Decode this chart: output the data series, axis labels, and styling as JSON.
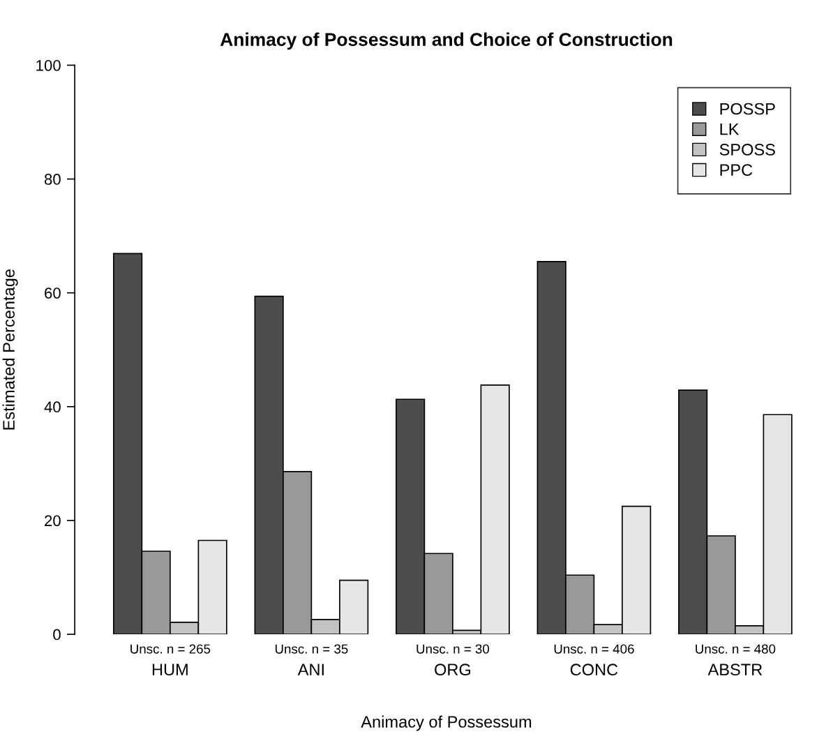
{
  "chart_data": {
    "type": "bar",
    "title": "Animacy of Possessum and Choice of Construction",
    "xlabel": "Animacy of Possessum",
    "ylabel": "Estimated Percentage",
    "categories": [
      "HUM",
      "ANI",
      "ORG",
      "CONC",
      "ABSTR"
    ],
    "series": [
      {
        "name": "POSSP",
        "color": "#4d4d4d",
        "values": [
          66.9,
          59.4,
          41.3,
          65.5,
          42.9
        ]
      },
      {
        "name": "LK",
        "color": "#999999",
        "values": [
          14.6,
          28.6,
          14.2,
          10.4,
          17.3
        ]
      },
      {
        "name": "SPOSS",
        "color": "#c3c3c3",
        "values": [
          2.1,
          2.6,
          0.7,
          1.7,
          1.5
        ]
      },
      {
        "name": "PPC",
        "color": "#e6e6e6",
        "values": [
          16.5,
          9.5,
          43.8,
          22.5,
          38.6
        ]
      }
    ],
    "annotations": [
      "Unsc. n = 265",
      "Unsc. n = 35",
      "Unsc. n = 30",
      "Unsc. n = 406",
      "Unsc. n = 480"
    ],
    "ylim": [
      0,
      100
    ],
    "yticks": [
      0,
      20,
      40,
      60,
      80,
      100
    ],
    "legend": "top right",
    "grid": false
  }
}
